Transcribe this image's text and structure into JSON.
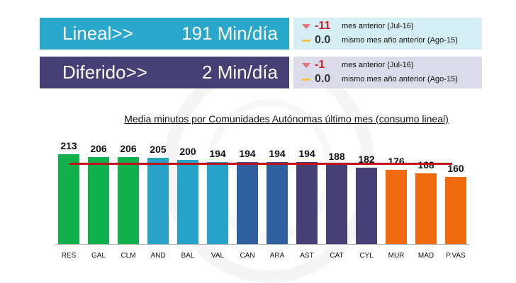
{
  "kpis": {
    "lineal": {
      "label": "Lineal>>",
      "value": "191 Min/día",
      "color": "#29a8cb"
    },
    "diferido": {
      "label": "Diferido>>",
      "value": "2 Min/día",
      "color": "#453f75"
    }
  },
  "deltas": {
    "lineal": [
      {
        "icon": "triangle-down-icon",
        "value": "-11",
        "text": "mes anterior (Jul-16)"
      },
      {
        "icon": "flat-dash-icon",
        "value": "0.0",
        "text": "mismo mes año anterior (Ago-15)"
      }
    ],
    "diferido": [
      {
        "icon": "triangle-down-icon",
        "value": "-1",
        "text": "mes anterior (Jul-16)"
      },
      {
        "icon": "flat-dash-icon",
        "value": "0.0",
        "text": "mismo mes año anterior (Ago-15)"
      }
    ]
  },
  "chart_data": {
    "type": "bar",
    "title": "Media minutos por Comunidades Autónomas último mes (consumo lineal)",
    "xlabel": "",
    "ylabel": "",
    "categories": [
      "RES",
      "GAL",
      "CLM",
      "AND",
      "BAL",
      "VAL",
      "CAN",
      "ARA",
      "AST",
      "CAT",
      "CYL",
      "MUR",
      "MAD",
      "P.VAS"
    ],
    "values": [
      213,
      206,
      206,
      205,
      200,
      194,
      194,
      194,
      194,
      188,
      182,
      176,
      168,
      160
    ],
    "colors": [
      "#12b04c",
      "#12b04c",
      "#12b04c",
      "#27a3c9",
      "#27a3c9",
      "#27a3c9",
      "#2f5f9e",
      "#2f5f9e",
      "#453f75",
      "#453f75",
      "#453f75",
      "#ee6a0c",
      "#ee6a0c",
      "#ee6a0c"
    ],
    "reference_line": {
      "value": 191,
      "color": "#c0141c",
      "label": "media"
    },
    "grid": false,
    "legend": "none",
    "data_labels": true
  }
}
